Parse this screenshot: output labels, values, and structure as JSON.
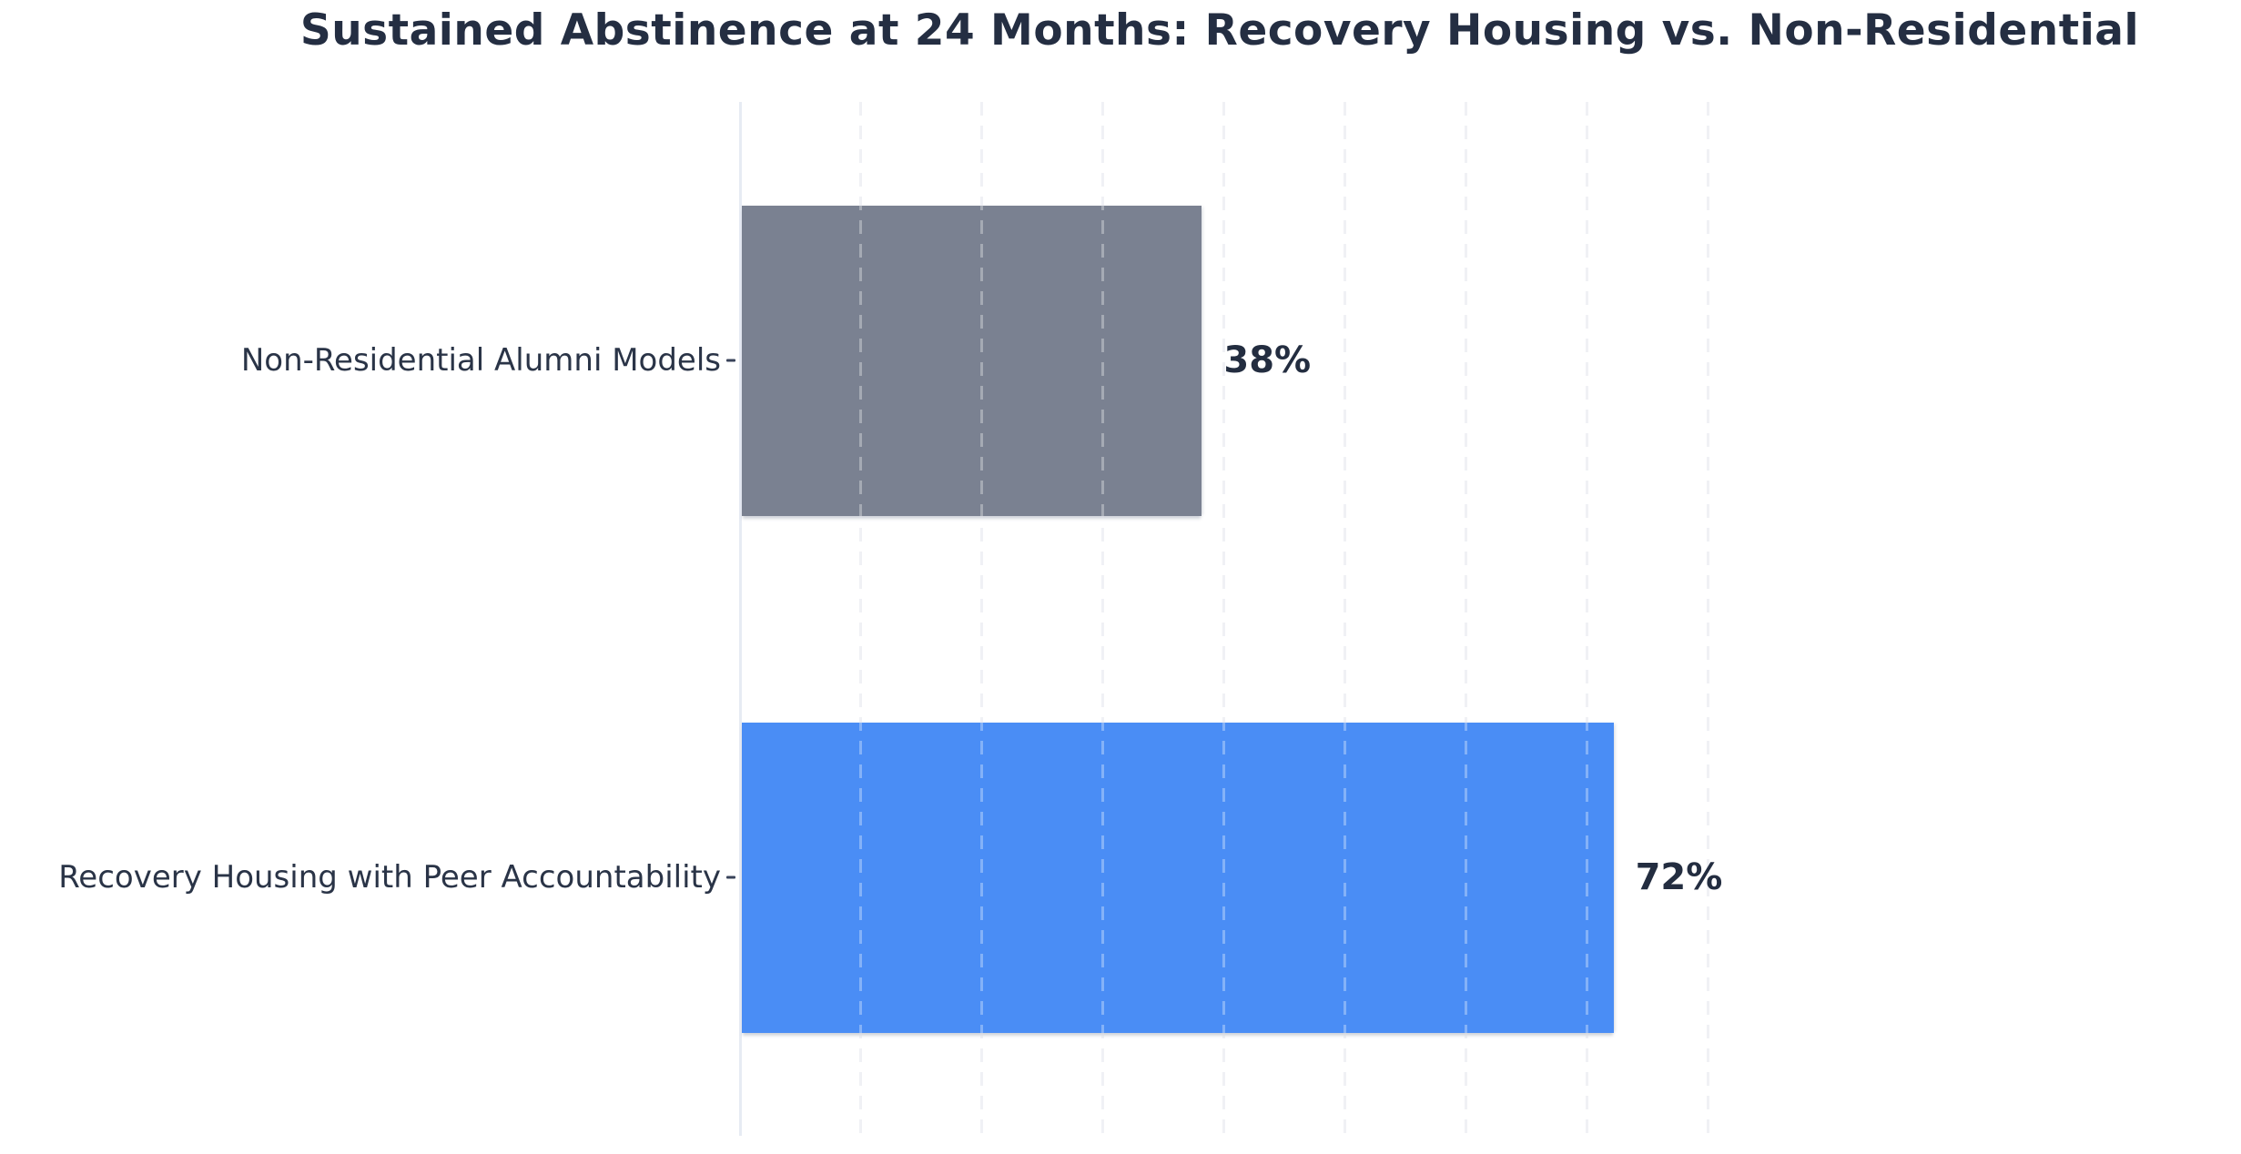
{
  "title": "Sustained Abstinence at 24 Months: Recovery Housing vs. Non-Residential",
  "chart_data": {
    "type": "bar",
    "orientation": "horizontal",
    "title": "Sustained Abstinence at 24 Months: Recovery Housing vs. Non-Residential",
    "categories": [
      "Non-Residential Alumni Models",
      "Recovery Housing with Peer Accountability"
    ],
    "values": [
      38,
      72
    ],
    "value_labels": [
      "38%",
      "72%"
    ],
    "bar_colors": [
      "#7a8191",
      "#4a8df5"
    ],
    "xlabel": "",
    "ylabel": "",
    "xlim": [
      0,
      80
    ],
    "gridline_step": 10,
    "grid": true,
    "gridline_style": "dashed",
    "legend": false
  },
  "colors": {
    "background": "#ffffff",
    "title_text": "#242e42",
    "category_text": "#2a3447",
    "value_text": "#232d40",
    "axis_line": "#e7ebf3",
    "gridline": "#e9eaf0",
    "bar_gray": "#7a8191",
    "bar_blue": "#4a8df5"
  }
}
